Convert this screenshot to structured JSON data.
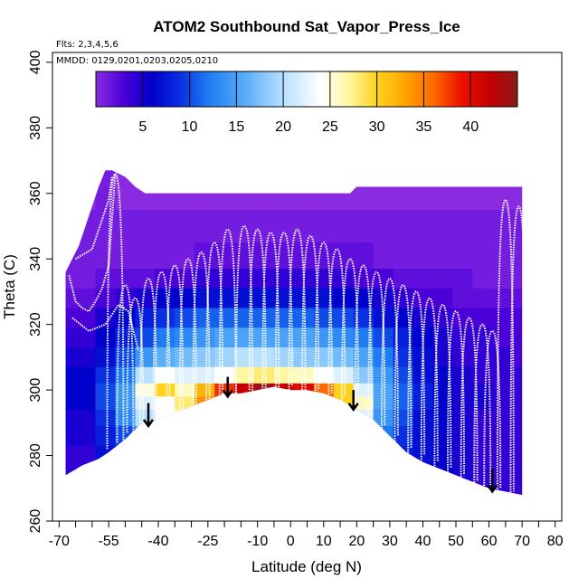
{
  "chart_data": {
    "type": "heatmap",
    "title": "ATOM2 Southbound Sat_Vapor_Press_Ice",
    "flights_label": "Flts: 2,3,4,5,6",
    "dates_label": "MMDD: 0129,0201,0203,0205,0210",
    "xlabel": "Latitude (deg N)",
    "ylabel": "Theta (C)",
    "xlim": [
      -72,
      82
    ],
    "ylim": [
      260,
      403
    ],
    "x_ticks": [
      -70,
      -55,
      -40,
      -25,
      -10,
      0,
      10,
      20,
      30,
      40,
      50,
      60,
      70,
      80
    ],
    "x_tick_labels": [
      "-70",
      "-55",
      "-40",
      "-25",
      "-10",
      "0",
      "10",
      "20",
      "30",
      "40",
      "50",
      "60",
      "70",
      "80"
    ],
    "x_minor_ticks": [
      -65,
      -60,
      -50,
      -45,
      -35,
      -30,
      -20,
      -15,
      -5,
      5,
      15,
      25,
      35,
      45,
      55,
      65,
      75
    ],
    "y_ticks": [
      260,
      280,
      300,
      320,
      340,
      360,
      380,
      400
    ],
    "y_tick_labels": [
      "260",
      "280",
      "300",
      "320",
      "340",
      "360",
      "380",
      "400"
    ],
    "colorbar": {
      "min": 0,
      "max": 45,
      "ticks": [
        5,
        10,
        15,
        20,
        25,
        30,
        35,
        40
      ],
      "tick_labels": [
        "5",
        "10",
        "15",
        "20",
        "25",
        "30",
        "35",
        "40"
      ],
      "stops": [
        [
          0,
          "#8a2be2"
        ],
        [
          3,
          "#4b00d8"
        ],
        [
          6,
          "#0000cd"
        ],
        [
          9,
          "#0a2fe0"
        ],
        [
          12,
          "#1e7cf2"
        ],
        [
          16,
          "#5aaef8"
        ],
        [
          20,
          "#b8e0ff"
        ],
        [
          24,
          "#ffffff"
        ],
        [
          27,
          "#fff7a0"
        ],
        [
          30,
          "#ffd21c"
        ],
        [
          33,
          "#ffa500"
        ],
        [
          36,
          "#ff6a00"
        ],
        [
          39,
          "#ee1000"
        ],
        [
          42,
          "#c50000"
        ],
        [
          45,
          "#8b1a1a"
        ]
      ]
    },
    "field": {
      "top_boundary": [
        [
          -68,
          336
        ],
        [
          -66,
          340
        ],
        [
          -64,
          344
        ],
        [
          -62,
          350
        ],
        [
          -60,
          356
        ],
        [
          -58,
          362
        ],
        [
          -56,
          367
        ],
        [
          -54,
          367
        ],
        [
          -52,
          366
        ],
        [
          -50,
          365
        ],
        [
          -47,
          362
        ],
        [
          -44,
          360
        ],
        [
          -40,
          360
        ],
        [
          -30,
          360
        ],
        [
          -20,
          360
        ],
        [
          -10,
          360
        ],
        [
          0,
          360
        ],
        [
          10,
          360
        ],
        [
          18,
          360
        ],
        [
          20,
          362
        ],
        [
          40,
          362
        ],
        [
          60,
          362
        ],
        [
          70,
          362
        ]
      ],
      "bottom_boundary": [
        [
          -68,
          274
        ],
        [
          -63,
          277
        ],
        [
          -58,
          279
        ],
        [
          -55,
          281
        ],
        [
          -50,
          285
        ],
        [
          -45,
          290
        ],
        [
          -40,
          291
        ],
        [
          -35,
          293
        ],
        [
          -30,
          295
        ],
        [
          -25,
          297
        ],
        [
          -20,
          299
        ],
        [
          -15,
          299
        ],
        [
          -10,
          300
        ],
        [
          -5,
          301
        ],
        [
          0,
          300
        ],
        [
          5,
          300
        ],
        [
          10,
          299
        ],
        [
          15,
          297
        ],
        [
          20,
          294
        ],
        [
          25,
          291
        ],
        [
          30,
          286
        ],
        [
          35,
          281
        ],
        [
          40,
          278
        ],
        [
          45,
          276
        ],
        [
          50,
          274
        ],
        [
          55,
          272
        ],
        [
          60,
          270
        ],
        [
          65,
          269
        ],
        [
          70,
          268
        ]
      ],
      "latitudes": [
        -68,
        -62,
        -56,
        -50,
        -44,
        -38,
        -32,
        -26,
        -20,
        -14,
        -8,
        -2,
        4,
        10,
        16,
        22,
        28,
        34,
        40,
        46,
        52,
        58,
        64,
        70
      ],
      "levels": [
        {
          "theta": 360,
          "values": [
            0,
            0,
            1,
            0,
            0,
            0,
            0,
            0,
            0,
            0,
            0,
            0,
            0,
            0,
            0,
            0,
            0,
            0,
            0,
            0,
            0,
            0,
            0,
            0
          ]
        },
        {
          "theta": 350,
          "values": [
            1,
            1,
            1,
            1,
            1,
            1,
            1,
            1,
            1,
            1,
            1,
            1,
            1,
            1,
            1,
            1,
            1,
            1,
            1,
            1,
            1,
            1,
            1,
            1
          ]
        },
        {
          "theta": 340,
          "values": [
            1,
            1,
            1,
            1,
            1,
            1,
            1,
            2,
            2,
            2,
            2,
            2,
            2,
            2,
            2,
            2,
            1,
            1,
            1,
            1,
            1,
            1,
            1,
            1
          ]
        },
        {
          "theta": 334,
          "values": [
            1,
            1,
            2,
            2,
            2,
            3,
            3,
            4,
            4,
            4,
            4,
            4,
            4,
            4,
            4,
            3,
            3,
            2,
            2,
            2,
            2,
            1,
            1,
            1
          ]
        },
        {
          "theta": 328,
          "values": [
            2,
            2,
            3,
            4,
            5,
            6,
            6,
            7,
            7,
            7,
            7,
            7,
            7,
            7,
            6,
            6,
            5,
            4,
            3,
            3,
            2,
            2,
            2,
            2
          ]
        },
        {
          "theta": 322,
          "values": [
            3,
            3,
            5,
            6,
            8,
            9,
            10,
            11,
            11,
            11,
            11,
            11,
            11,
            10,
            10,
            9,
            7,
            6,
            5,
            4,
            3,
            3,
            3,
            3
          ]
        },
        {
          "theta": 316,
          "values": [
            4,
            4,
            6,
            8,
            10,
            12,
            13,
            14,
            15,
            15,
            15,
            15,
            15,
            14,
            13,
            12,
            10,
            8,
            6,
            5,
            4,
            4,
            3,
            3
          ]
        },
        {
          "theta": 310,
          "values": [
            5,
            5,
            7,
            10,
            14,
            16,
            17,
            18,
            19,
            20,
            20,
            19,
            18,
            18,
            17,
            15,
            12,
            9,
            7,
            5,
            4,
            4,
            4,
            3
          ]
        },
        {
          "theta": 304,
          "values": [
            6,
            6,
            9,
            12,
            20,
            24,
            22,
            22,
            24,
            27,
            28,
            27,
            26,
            24,
            22,
            18,
            14,
            10,
            7,
            6,
            5,
            4,
            4,
            4
          ]
        },
        {
          "theta": 300,
          "values": [
            6,
            6,
            10,
            14,
            25,
            30,
            26,
            32,
            38,
            42,
            44,
            42,
            40,
            36,
            30,
            22,
            15,
            11,
            8,
            6,
            5,
            5,
            4,
            4
          ]
        },
        {
          "theta": 296,
          "values": [
            6,
            6,
            10,
            14,
            22,
            24,
            28,
            34,
            36,
            38,
            40,
            38,
            36,
            34,
            30,
            26,
            15,
            11,
            8,
            6,
            5,
            5,
            4,
            4
          ]
        },
        {
          "theta": 292,
          "values": [
            5,
            5,
            9,
            13,
            20,
            24,
            26,
            28,
            30,
            30,
            30,
            30,
            28,
            26,
            24,
            22,
            14,
            10,
            7,
            6,
            5,
            4,
            4,
            4
          ]
        },
        {
          "theta": 286,
          "values": [
            5,
            5,
            8,
            10,
            16,
            18,
            18,
            18,
            18,
            18,
            18,
            18,
            18,
            18,
            18,
            18,
            12,
            9,
            7,
            6,
            5,
            4,
            4,
            4
          ]
        },
        {
          "theta": 280,
          "values": [
            4,
            4,
            7,
            9,
            12,
            12,
            12,
            12,
            12,
            12,
            12,
            12,
            12,
            12,
            12,
            12,
            10,
            8,
            7,
            6,
            5,
            4,
            4,
            4
          ]
        },
        {
          "theta": 274,
          "values": [
            4,
            4,
            6,
            8,
            10,
            10,
            10,
            10,
            10,
            10,
            10,
            10,
            10,
            10,
            10,
            10,
            9,
            8,
            7,
            6,
            5,
            4,
            4,
            4
          ]
        },
        {
          "theta": 268,
          "values": [
            4,
            4,
            6,
            8,
            10,
            10,
            10,
            10,
            10,
            10,
            10,
            10,
            10,
            10,
            10,
            10,
            9,
            8,
            7,
            6,
            5,
            4,
            4,
            4
          ]
        }
      ]
    },
    "flight_profiles": [
      {
        "latitude": -53,
        "theta_min": 282,
        "theta_max": 366
      },
      {
        "latitude": -50,
        "theta_min": 284,
        "theta_max": 332
      },
      {
        "latitude": -47,
        "theta_min": 287,
        "theta_max": 328
      },
      {
        "latitude": -43,
        "theta_min": 290,
        "theta_max": 334
      },
      {
        "latitude": -39,
        "theta_min": 291,
        "theta_max": 336
      },
      {
        "latitude": -35,
        "theta_min": 293,
        "theta_max": 338
      },
      {
        "latitude": -31,
        "theta_min": 294,
        "theta_max": 340
      },
      {
        "latitude": -27,
        "theta_min": 296,
        "theta_max": 342
      },
      {
        "latitude": -23,
        "theta_min": 297,
        "theta_max": 345
      },
      {
        "latitude": -19,
        "theta_min": 298,
        "theta_max": 349
      },
      {
        "latitude": -14,
        "theta_min": 299,
        "theta_max": 350
      },
      {
        "latitude": -10,
        "theta_min": 300,
        "theta_max": 349
      },
      {
        "latitude": -6,
        "theta_min": 300,
        "theta_max": 348
      },
      {
        "latitude": -2,
        "theta_min": 301,
        "theta_max": 348
      },
      {
        "latitude": 2,
        "theta_min": 300,
        "theta_max": 349
      },
      {
        "latitude": 6,
        "theta_min": 300,
        "theta_max": 347
      },
      {
        "latitude": 10,
        "theta_min": 299,
        "theta_max": 345
      },
      {
        "latitude": 14,
        "theta_min": 298,
        "theta_max": 343
      },
      {
        "latitude": 18,
        "theta_min": 295,
        "theta_max": 340
      },
      {
        "latitude": 22,
        "theta_min": 292,
        "theta_max": 338
      },
      {
        "latitude": 26,
        "theta_min": 289,
        "theta_max": 336
      },
      {
        "latitude": 30,
        "theta_min": 286,
        "theta_max": 334
      },
      {
        "latitude": 34,
        "theta_min": 282,
        "theta_max": 332
      },
      {
        "latitude": 38,
        "theta_min": 280,
        "theta_max": 330
      },
      {
        "latitude": 42,
        "theta_min": 278,
        "theta_max": 328
      },
      {
        "latitude": 46,
        "theta_min": 276,
        "theta_max": 326
      },
      {
        "latitude": 50,
        "theta_min": 274,
        "theta_max": 324
      },
      {
        "latitude": 54,
        "theta_min": 272,
        "theta_max": 322
      },
      {
        "latitude": 58,
        "theta_min": 271,
        "theta_max": 320
      },
      {
        "latitude": 61,
        "theta_min": 270,
        "theta_max": 318
      },
      {
        "latitude": 65,
        "theta_min": 269,
        "theta_max": 358
      },
      {
        "latitude": 69,
        "theta_min": 268,
        "theta_max": 356
      }
    ],
    "boundary_traces": [
      [
        [
          -67,
          335
        ],
        [
          -65,
          327
        ],
        [
          -63,
          325
        ],
        [
          -61,
          324
        ],
        [
          -59,
          327
        ],
        [
          -57,
          331
        ],
        [
          -55,
          338
        ],
        [
          -54,
          352
        ],
        [
          -53,
          366
        ]
      ],
      [
        [
          -66,
          322
        ],
        [
          -61,
          318
        ],
        [
          -56,
          320
        ],
        [
          -52,
          326
        ],
        [
          -49,
          324
        ],
        [
          -46,
          312
        ]
      ],
      [
        [
          -65,
          340
        ],
        [
          -60,
          343
        ],
        [
          -58,
          349
        ],
        [
          -55,
          358
        ],
        [
          -54,
          365
        ]
      ]
    ],
    "arrows": [
      {
        "latitude": -43,
        "theta_from": 296,
        "theta_to": 289
      },
      {
        "latitude": -19,
        "theta_from": 304,
        "theta_to": 298
      },
      {
        "latitude": 19,
        "theta_from": 300,
        "theta_to": 294
      },
      {
        "latitude": 61,
        "theta_from": 276,
        "theta_to": 269
      }
    ]
  }
}
